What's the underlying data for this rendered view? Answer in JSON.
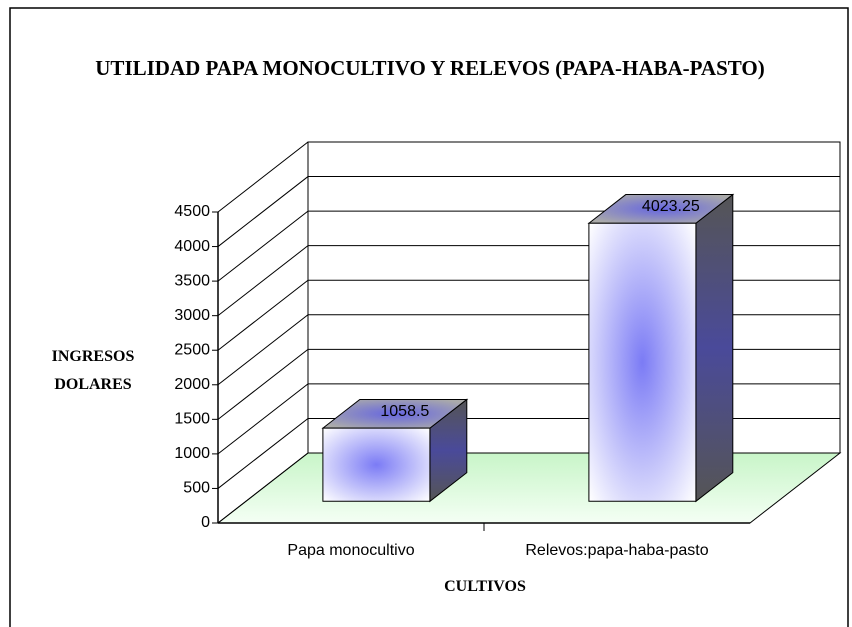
{
  "chart_data": {
    "type": "bar3d",
    "title": "UTILIDAD PAPA MONOCULTIVO Y RELEVOS (PAPA-HABA-PASTO)",
    "y_label": "INGRESOS DOLARES",
    "x_label": "CULTIVOS",
    "categories": [
      "Papa monocultivo",
      "Relevos:papa-haba-pasto"
    ],
    "values": [
      1058.5,
      4023.25
    ],
    "color": "#7b7bf5",
    "ylim": [
      0,
      4500
    ],
    "yticks": [
      0,
      500,
      1000,
      1500,
      2000,
      2500,
      3000,
      3500,
      4000,
      4500
    ],
    "grid": true
  }
}
